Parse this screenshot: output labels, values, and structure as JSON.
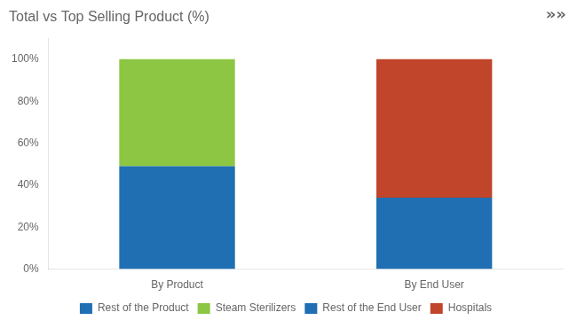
{
  "chart_data": {
    "type": "bar",
    "title": "Total vs Top Selling Product (%)",
    "annotations": [
      "»»"
    ],
    "categories": [
      "By Product",
      "By End User"
    ],
    "series": [
      {
        "name": "Rest of the Product",
        "color": "#1F6FB2",
        "values": [
          49,
          0
        ]
      },
      {
        "name": "Steam Sterilizers",
        "color": "#8DC642",
        "values": [
          51,
          0
        ]
      },
      {
        "name": "Rest of the End User",
        "color": "#1F6FB2",
        "values": [
          0,
          34
        ]
      },
      {
        "name": "Hospitals",
        "color": "#C0452A",
        "values": [
          0,
          66
        ]
      }
    ],
    "stacked": true,
    "ylim": [
      0,
      110
    ],
    "yticks": [
      {
        "value": 0,
        "label": "0%"
      },
      {
        "value": 20,
        "label": "20%"
      },
      {
        "value": 40,
        "label": "40%"
      },
      {
        "value": 60,
        "label": "60%"
      },
      {
        "value": 80,
        "label": "80%"
      },
      {
        "value": 100,
        "label": "100%"
      }
    ],
    "grid": false,
    "legend": "bottom"
  }
}
